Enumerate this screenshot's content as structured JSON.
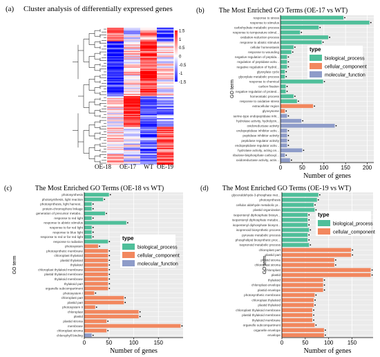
{
  "chart_data": [
    {
      "id": "a",
      "panel_label": "(a)",
      "type": "heatmap",
      "title": "Cluster analysis of differentially expressed genes",
      "columns": [
        "OE-18",
        "OE-17",
        "WT",
        "OE-19"
      ],
      "colorbar": {
        "ticks": [
          1.5,
          1,
          0.5,
          0,
          -0.5,
          -1,
          -1.5
        ],
        "colors": [
          "#ff1a1a",
          "#ffffff",
          "#1a1aff"
        ]
      },
      "dendrogram": true,
      "rows": 130
    },
    {
      "id": "b",
      "panel_label": "(b)",
      "type": "bar",
      "orientation": "horizontal",
      "title": "The Most Enriched GO Terms (OE-17 vs WT)",
      "xlabel": "Number of genes",
      "ylabel": "GO term",
      "xlim": [
        0,
        215
      ],
      "xticks": [
        0,
        50,
        100,
        150,
        200
      ],
      "legend": {
        "title": "type",
        "position": "center-right",
        "items": [
          {
            "name": "biological_process",
            "color": "#4fbf9a"
          },
          {
            "name": "cellular_component",
            "color": "#f2875e"
          },
          {
            "name": "molecular_function",
            "color": "#8e9cc9"
          }
        ]
      },
      "categories": [
        "response to stress",
        "response to stimulus",
        "carbohydrate metabolic process",
        "response to temperature stimul...",
        "oxidation-reduction process",
        "response to abiotic stimulus",
        "cellular homeostasis",
        "response to wounding",
        "negative regulation of peptida...",
        "regulation of peptidase activ...",
        "negative regulation of hydrol...",
        "glyoxylate cycle",
        "glyoxylate metabolic process",
        "response to chemical",
        "carbon fixation",
        "negative regulation of proteol...",
        "homeostatic process",
        "response to oxidative stress",
        "extracellular region",
        "glyoxysome",
        "serine-type endopeptidase inhi...",
        "hydrolase activity, hydrolyzin...",
        "oxidoreductase activity",
        "endopeptidase inhibitor activ...",
        "peptidase inhibitor activity",
        "peptidase regulator activity",
        "endopeptidase regulator activ...",
        "hydrolase activity, acting on...",
        "ribulose-bisphosphate carboxyl...",
        "oxidoreductase activity, actin..."
      ],
      "values": [
        145,
        205,
        88,
        45,
        110,
        95,
        30,
        25,
        15,
        15,
        15,
        10,
        10,
        98,
        12,
        12,
        30,
        38,
        75,
        10,
        15,
        48,
        125,
        15,
        15,
        15,
        15,
        50,
        10,
        22
      ],
      "types": [
        "biological_process",
        "biological_process",
        "biological_process",
        "biological_process",
        "biological_process",
        "biological_process",
        "biological_process",
        "biological_process",
        "biological_process",
        "biological_process",
        "biological_process",
        "biological_process",
        "biological_process",
        "biological_process",
        "biological_process",
        "biological_process",
        "biological_process",
        "biological_process",
        "cellular_component",
        "cellular_component",
        "molecular_function",
        "molecular_function",
        "molecular_function",
        "molecular_function",
        "molecular_function",
        "molecular_function",
        "molecular_function",
        "molecular_function",
        "molecular_function",
        "molecular_function"
      ]
    },
    {
      "id": "c",
      "panel_label": "(c)",
      "type": "bar",
      "orientation": "horizontal",
      "title": "The Most Enriched GO Terms (OE-18 vs WT)",
      "xlabel": "Number of genes",
      "ylabel": "GO term",
      "xlim": [
        0,
        200
      ],
      "xticks": [
        0,
        50,
        100,
        150
      ],
      "legend": {
        "title": "type",
        "position": "center-right",
        "items": [
          {
            "name": "biological_process",
            "color": "#4fbf9a"
          },
          {
            "name": "cellular_component",
            "color": "#f2875e"
          },
          {
            "name": "molecular_function",
            "color": "#8e9cc9"
          }
        ]
      },
      "categories": [
        "photosynthesis",
        "photosynthesis, light reaction",
        "photosynthesis, light harvest...",
        "protein-chromophore linkage",
        "generation of precursor metabo...",
        "response to red light",
        "response to abiotic stimulus",
        "response to far red light",
        "response to blue light",
        "response to red or far red light",
        "response to radiation",
        "photosystem",
        "photosynthetic membrane",
        "chloroplast thylakoid",
        "plastid thylakoid",
        "thylakoid",
        "chloroplast thylakoid membrane",
        "plastid thylakoid membrane",
        "thylakoid membrane",
        "thylakoid part",
        "organelle subcompartment",
        "photosystem I",
        "chloroplast part",
        "plastid part",
        "photosystem II",
        "chloroplast",
        "plastid",
        "plastid stroma",
        "membrane",
        "chloroplast stroma",
        "chlorophyll binding"
      ],
      "values": [
        50,
        38,
        15,
        15,
        42,
        15,
        85,
        15,
        15,
        15,
        48,
        28,
        48,
        48,
        48,
        48,
        48,
        48,
        48,
        48,
        48,
        20,
        80,
        80,
        22,
        110,
        110,
        45,
        195,
        45,
        15
      ],
      "types": [
        "biological_process",
        "biological_process",
        "biological_process",
        "biological_process",
        "biological_process",
        "biological_process",
        "biological_process",
        "biological_process",
        "biological_process",
        "biological_process",
        "biological_process",
        "cellular_component",
        "cellular_component",
        "cellular_component",
        "cellular_component",
        "cellular_component",
        "cellular_component",
        "cellular_component",
        "cellular_component",
        "cellular_component",
        "cellular_component",
        "cellular_component",
        "cellular_component",
        "cellular_component",
        "cellular_component",
        "cellular_component",
        "cellular_component",
        "cellular_component",
        "cellular_component",
        "cellular_component",
        "molecular_function"
      ]
    },
    {
      "id": "d",
      "panel_label": "(d)",
      "type": "bar",
      "orientation": "horizontal",
      "title": "The Most Enriched GO Terms (OE-19 vs WT)",
      "xlabel": "Number of genes",
      "ylabel": "GO term",
      "xlim": [
        0,
        195
      ],
      "xticks": [
        0,
        50,
        100,
        150
      ],
      "legend": {
        "title": "type",
        "position": "center-right",
        "items": [
          {
            "name": "biological_process",
            "color": "#4fbf9a"
          },
          {
            "name": "cellular_component",
            "color": "#f2875e"
          }
        ]
      },
      "categories": [
        "glyceraldehyde-3-phosphate met...",
        "photosynthesis",
        "cellular aldehyde metabolic pr...",
        "plastid organization",
        "isopentenyl diphosphate biosyn...",
        "isopentenyl diphosphate metabo...",
        "isopentenyl diphosphate biosynt...",
        "isoprenoid biosynthetic process",
        "pyruvate metabolic process",
        "phospholipid biosynthetic proc...",
        "isoprenoid metabolic process",
        "chloroplast part",
        "plastid part",
        "plastid stroma",
        "chloroplast stroma",
        "chloroplast",
        "plastid",
        "thylakoid",
        "chloroplast envelope",
        "plastid envelope",
        "photosynthetic membrane",
        "chloroplast thylakoid",
        "plastid thylakoid",
        "chloroplast thylakoid membrane",
        "plastid thylakoid membrane",
        "thylakoid membrane",
        "organelle subcompartment",
        "organelle envelope",
        "envelope"
      ],
      "values": [
        78,
        75,
        68,
        70,
        55,
        55,
        55,
        58,
        55,
        55,
        58,
        148,
        148,
        112,
        112,
        190,
        190,
        88,
        88,
        88,
        70,
        68,
        68,
        65,
        65,
        65,
        70,
        90,
        90
      ],
      "types": [
        "biological_process",
        "biological_process",
        "biological_process",
        "biological_process",
        "biological_process",
        "biological_process",
        "biological_process",
        "biological_process",
        "biological_process",
        "biological_process",
        "biological_process",
        "cellular_component",
        "cellular_component",
        "cellular_component",
        "cellular_component",
        "cellular_component",
        "cellular_component",
        "cellular_component",
        "cellular_component",
        "cellular_component",
        "cellular_component",
        "cellular_component",
        "cellular_component",
        "cellular_component",
        "cellular_component",
        "cellular_component",
        "cellular_component",
        "cellular_component",
        "cellular_component"
      ]
    }
  ]
}
